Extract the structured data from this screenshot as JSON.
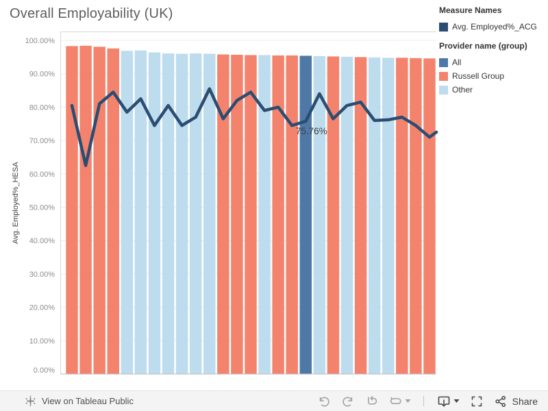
{
  "title": "Overall Employability (UK)",
  "legend": {
    "measure_title": "Measure Names",
    "measure_items": [
      {
        "label": "Avg. Employed%_ACG",
        "color": "#2b4d71"
      }
    ],
    "provider_title": "Provider name (group)",
    "provider_items": [
      {
        "label": "All",
        "color": "#4e79a7"
      },
      {
        "label": "Russell Group",
        "color": "#f4836e"
      },
      {
        "label": "Other",
        "color": "#bddcee"
      }
    ]
  },
  "chart_data": {
    "type": "bar+line",
    "title": "Overall Employability (UK)",
    "xlabel": "",
    "ylabel": "Avg. Employed%_HESA",
    "ylim": [
      0,
      102
    ],
    "grid": true,
    "legend_position": "right",
    "yticks": [
      {
        "value": 100,
        "label": "100.00%"
      },
      {
        "value": 90,
        "label": "90.00%"
      },
      {
        "value": 80,
        "label": "80.00%"
      },
      {
        "value": 70,
        "label": "70.00%"
      },
      {
        "value": 60,
        "label": "60.00%"
      },
      {
        "value": 50,
        "label": "50.00%"
      },
      {
        "value": 40,
        "label": "40.00%"
      },
      {
        "value": 30,
        "label": "30.00%"
      },
      {
        "value": 20,
        "label": "20.00%"
      },
      {
        "value": 10,
        "label": "10.00%"
      },
      {
        "value": 0,
        "label": "0.00%"
      }
    ],
    "series": [
      {
        "name": "Avg. Employed%_HESA",
        "mark": "bar",
        "values": [
          98.3,
          98.4,
          98.1,
          97.6,
          96.9,
          97.0,
          96.4,
          96.1,
          96.0,
          96.1,
          96.0,
          95.8,
          95.7,
          95.6,
          95.6,
          95.5,
          95.5,
          95.4,
          95.3,
          95.2,
          95.1,
          95.0,
          94.9,
          94.8,
          94.8,
          94.7,
          94.6
        ],
        "groups": [
          "Russell Group",
          "Russell Group",
          "Russell Group",
          "Russell Group",
          "Other",
          "Other",
          "Other",
          "Other",
          "Other",
          "Other",
          "Other",
          "Russell Group",
          "Russell Group",
          "Russell Group",
          "Other",
          "Russell Group",
          "Russell Group",
          "All",
          "Other",
          "Russell Group",
          "Other",
          "Russell Group",
          "Other",
          "Other",
          "Russell Group",
          "Russell Group",
          "Russell Group"
        ]
      },
      {
        "name": "Avg. Employed%_ACG",
        "mark": "line",
        "values": [
          80.5,
          62.5,
          81.0,
          84.5,
          78.5,
          82.5,
          74.5,
          80.5,
          74.5,
          77.0,
          85.5,
          76.5,
          82.0,
          84.5,
          79.0,
          80.0,
          74.5,
          75.76,
          84.0,
          76.5,
          80.5,
          81.5,
          76.0,
          76.2,
          77.0,
          74.5,
          71.0
        ],
        "tail_value": 72.5,
        "color": "#2b4d71"
      }
    ],
    "colors": {
      "All": "#4e79a7",
      "Russell Group": "#f4836e",
      "Other": "#bddcee"
    },
    "annotation": {
      "text": "75.76%",
      "point_index": 17,
      "value": 75.76
    }
  },
  "toolbar": {
    "view_label": "View on Tableau Public",
    "share_label": "Share",
    "buttons": [
      "undo",
      "redo",
      "reset",
      "refresh",
      "download",
      "fullscreen",
      "share"
    ]
  }
}
